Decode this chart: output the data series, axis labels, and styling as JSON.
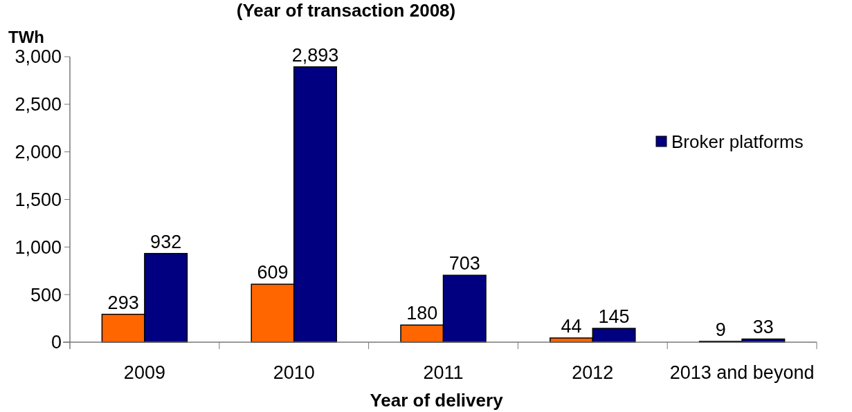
{
  "chart_data": {
    "type": "bar",
    "title": "(Year of transaction 2008)",
    "ylabel": "TWh",
    "xlabel": "Year of delivery",
    "categories": [
      "2009",
      "2010",
      "2011",
      "2012",
      "2013 and beyond"
    ],
    "series": [
      {
        "color": "#ff6600",
        "values": [
          293,
          609,
          180,
          44,
          9
        ]
      },
      {
        "name": "Broker platforms",
        "color": "#000080",
        "values": [
          932,
          2893,
          703,
          145,
          33
        ],
        "value_labels": [
          "932",
          "2,893",
          "703",
          "145",
          "33"
        ]
      }
    ],
    "ylim": [
      0,
      3000
    ],
    "yticks": [
      {
        "value": 0,
        "label": "0"
      },
      {
        "value": 500,
        "label": "500"
      },
      {
        "value": 1000,
        "label": "1,000"
      },
      {
        "value": 1500,
        "label": "1,500"
      },
      {
        "value": 2000,
        "label": "2,000"
      },
      {
        "value": 2500,
        "label": "2,500"
      },
      {
        "value": 3000,
        "label": "3,000"
      }
    ],
    "data_labels": true,
    "legend": "right",
    "grid": false
  }
}
